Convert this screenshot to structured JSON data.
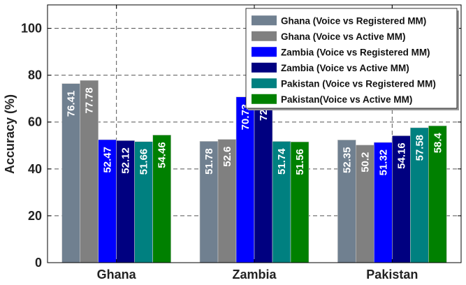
{
  "chart_data": {
    "type": "bar",
    "categories": [
      "Ghana",
      "Zambia",
      "Pakistan"
    ],
    "ylabel": "Accuracy (%)",
    "ylim": [
      0,
      110
    ],
    "yticks": [
      0,
      20,
      40,
      60,
      80,
      100
    ],
    "grid": true,
    "legend_position": "top-right",
    "series": [
      {
        "name": "Ghana (Voice vs Registered MM)",
        "color": "#708090",
        "values": [
          76.41,
          51.78,
          52.35
        ]
      },
      {
        "name": "Ghana (Voice vs Active MM)",
        "color": "#808080",
        "values": [
          77.78,
          52.6,
          50.2
        ]
      },
      {
        "name": "Zambia (Voice vs Registered MM)",
        "color": "#0000ff",
        "values": [
          52.47,
          70.73,
          51.32
        ]
      },
      {
        "name": "Zambia (Voice vs Active MM)",
        "color": "#000080",
        "values": [
          52.12,
          72.2,
          54.16
        ]
      },
      {
        "name": "Pakistan (Voice vs Registered MM)",
        "color": "#008080",
        "values": [
          51.66,
          51.74,
          57.58
        ]
      },
      {
        "name": "Pakistan(Voice vs Active MM)",
        "color": "#008000",
        "values": [
          54.46,
          51.56,
          58.4
        ]
      }
    ]
  }
}
